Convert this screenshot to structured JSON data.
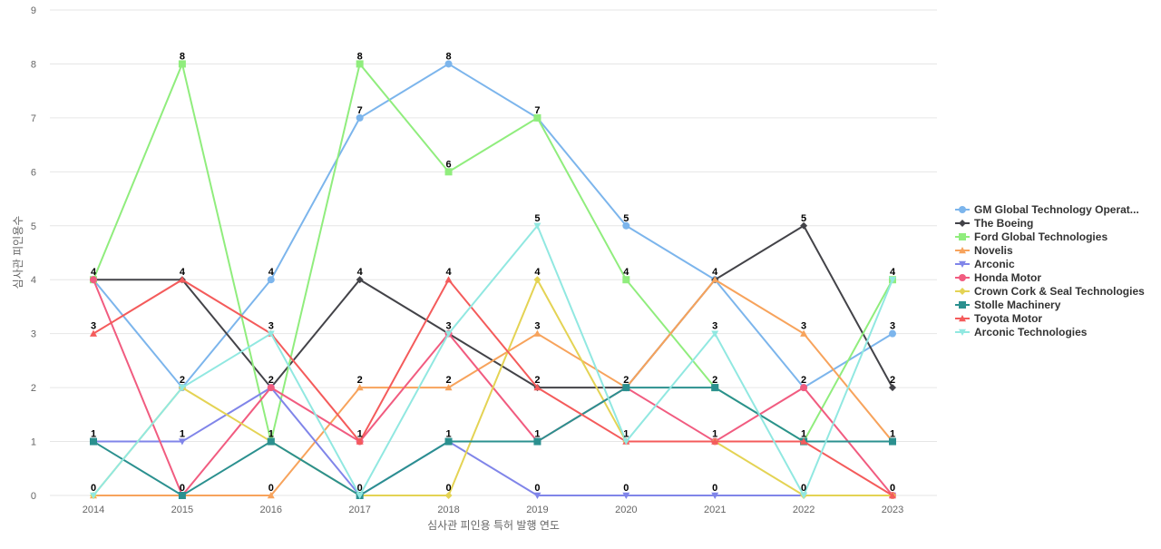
{
  "chart_data": {
    "type": "line",
    "title": "",
    "xlabel": "심사관 피인용 특허 발행 연도",
    "ylabel": "심사관 피인용수",
    "x": [
      "2014",
      "2015",
      "2016",
      "2017",
      "2018",
      "2019",
      "2020",
      "2021",
      "2022",
      "2023"
    ],
    "ylim": [
      0,
      9
    ],
    "yticks": [
      "0",
      "1",
      "2",
      "3",
      "4",
      "5",
      "6",
      "7",
      "8",
      "9"
    ],
    "grid": true,
    "legend_position": "right",
    "series": [
      {
        "name": "GM Global Technology Operat...",
        "color": "#7cb5ec",
        "marker": "circle",
        "values": [
          4,
          2,
          4,
          7,
          8,
          7,
          5,
          4,
          2,
          3
        ]
      },
      {
        "name": "The Boeing",
        "color": "#434348",
        "marker": "diamond",
        "values": [
          4,
          4,
          2,
          4,
          3,
          2,
          2,
          4,
          5,
          2
        ]
      },
      {
        "name": "Ford Global Technologies",
        "color": "#90ed7d",
        "marker": "square",
        "values": [
          4,
          8,
          1,
          8,
          6,
          7,
          4,
          2,
          1,
          4
        ]
      },
      {
        "name": "Novelis",
        "color": "#f7a35c",
        "marker": "triangle",
        "values": [
          0,
          0,
          0,
          2,
          2,
          3,
          2,
          4,
          3,
          1
        ]
      },
      {
        "name": "Arconic",
        "color": "#8085e9",
        "marker": "triangle-down",
        "values": [
          1,
          1,
          2,
          0,
          1,
          0,
          0,
          0,
          0,
          0
        ]
      },
      {
        "name": "Honda Motor",
        "color": "#f15c80",
        "marker": "circle",
        "values": [
          4,
          0,
          2,
          1,
          3,
          1,
          2,
          1,
          2,
          0
        ]
      },
      {
        "name": "Crown Cork & Seal Technologies",
        "color": "#e4d354",
        "marker": "diamond",
        "values": [
          0,
          2,
          1,
          0,
          0,
          4,
          1,
          1,
          0,
          0
        ]
      },
      {
        "name": "Stolle Machinery",
        "color": "#2b908f",
        "marker": "square",
        "values": [
          1,
          0,
          1,
          0,
          1,
          1,
          2,
          2,
          1,
          1
        ]
      },
      {
        "name": "Toyota Motor",
        "color": "#f45b5b",
        "marker": "triangle",
        "values": [
          3,
          4,
          3,
          1,
          4,
          2,
          1,
          1,
          1,
          0
        ]
      },
      {
        "name": "Arconic Technologies",
        "color": "#91e8e1",
        "marker": "triangle-down",
        "values": [
          0,
          2,
          3,
          0,
          3,
          5,
          1,
          3,
          0,
          4
        ]
      }
    ],
    "data_labels": [
      {
        "x": "2014",
        "values": [
          "4",
          "3",
          "1",
          "0"
        ]
      },
      {
        "x": "2015",
        "values": [
          "8",
          "4",
          "2",
          "1",
          "0"
        ]
      },
      {
        "x": "2016",
        "values": [
          "4",
          "3",
          "2",
          "1",
          "0"
        ]
      },
      {
        "x": "2017",
        "values": [
          "8",
          "7",
          "4",
          "2",
          "1",
          "0"
        ]
      },
      {
        "x": "2018",
        "values": [
          "8",
          "6",
          "4",
          "3",
          "2",
          "1",
          "0"
        ]
      },
      {
        "x": "2019",
        "values": [
          "7",
          "5",
          "4",
          "3",
          "2",
          "1",
          "0"
        ]
      },
      {
        "x": "2020",
        "values": [
          "5",
          "4",
          "2",
          "1",
          "0"
        ]
      },
      {
        "x": "2021",
        "values": [
          "4",
          "3",
          "2",
          "1",
          "0"
        ]
      },
      {
        "x": "2022",
        "values": [
          "5",
          "3",
          "2",
          "1",
          "0"
        ]
      },
      {
        "x": "2023",
        "values": [
          "4",
          "3",
          "2",
          "1",
          "0"
        ]
      }
    ]
  }
}
